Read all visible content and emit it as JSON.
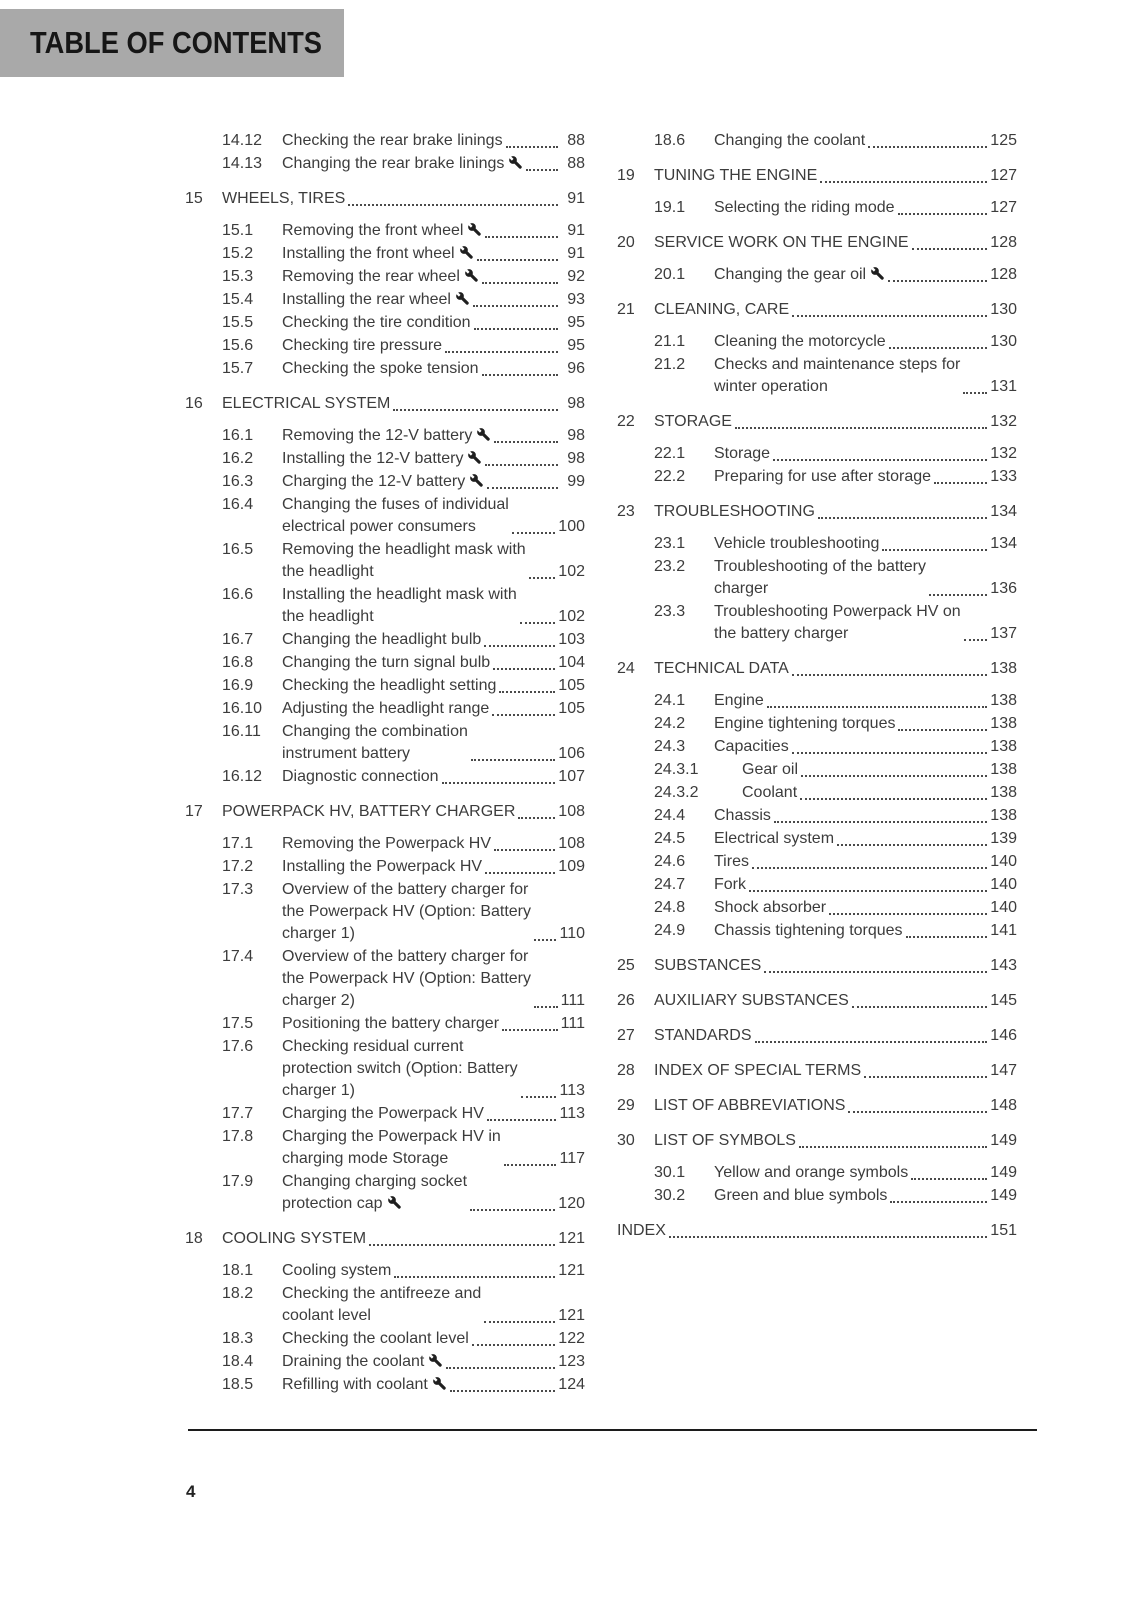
{
  "header": {
    "title": "TABLE OF CONTENTS"
  },
  "footer": {
    "page_number": "4"
  },
  "colors": {
    "header_bg": "#a9a9a9",
    "text": "#3c3c3c",
    "rule": "#1c1c1c"
  },
  "icons": {
    "wrench": "wrench-icon"
  },
  "toc": {
    "left": [
      {
        "level": "sub",
        "num": "14.12",
        "title": "Checking the rear brake linings",
        "page": "88",
        "wrench": false
      },
      {
        "level": "sub",
        "num": "14.13",
        "title": "Changing the rear brake linings",
        "page": "88",
        "wrench": true
      },
      {
        "level": "chapter",
        "num": "15",
        "title": "WHEELS, TIRES",
        "page": "91",
        "wrench": false
      },
      {
        "level": "sub",
        "num": "15.1",
        "title": "Removing the front wheel",
        "page": "91",
        "wrench": true
      },
      {
        "level": "sub",
        "num": "15.2",
        "title": "Installing the front wheel",
        "page": "91",
        "wrench": true
      },
      {
        "level": "sub",
        "num": "15.3",
        "title": "Removing the rear wheel",
        "page": "92",
        "wrench": true
      },
      {
        "level": "sub",
        "num": "15.4",
        "title": "Installing the rear wheel",
        "page": "93",
        "wrench": true
      },
      {
        "level": "sub",
        "num": "15.5",
        "title": "Checking the tire condition",
        "page": "95",
        "wrench": false
      },
      {
        "level": "sub",
        "num": "15.6",
        "title": "Checking tire pressure",
        "page": "95",
        "wrench": false
      },
      {
        "level": "sub",
        "num": "15.7",
        "title": "Checking the spoke tension",
        "page": "96",
        "wrench": false
      },
      {
        "level": "chapter",
        "num": "16",
        "title": "ELECTRICAL SYSTEM",
        "page": "98",
        "wrench": false
      },
      {
        "level": "sub",
        "num": "16.1",
        "title": "Removing the 12-V battery",
        "page": "98",
        "wrench": true
      },
      {
        "level": "sub",
        "num": "16.2",
        "title": "Installing the 12-V battery",
        "page": "98",
        "wrench": true
      },
      {
        "level": "sub",
        "num": "16.3",
        "title": "Charging the 12-V battery",
        "page": "99",
        "wrench": true
      },
      {
        "level": "sub",
        "num": "16.4",
        "title": "Changing the fuses of individual\nelectrical power consumers",
        "page": "100",
        "wrench": false
      },
      {
        "level": "sub",
        "num": "16.5",
        "title": "Removing the headlight mask with\nthe headlight",
        "page": "102",
        "wrench": false
      },
      {
        "level": "sub",
        "num": "16.6",
        "title": "Installing the headlight mask with\nthe headlight",
        "page": "102",
        "wrench": false
      },
      {
        "level": "sub",
        "num": "16.7",
        "title": "Changing the headlight bulb",
        "page": "103",
        "wrench": false
      },
      {
        "level": "sub",
        "num": "16.8",
        "title": "Changing the turn signal bulb",
        "page": "104",
        "wrench": false
      },
      {
        "level": "sub",
        "num": "16.9",
        "title": "Checking the headlight setting",
        "page": "105",
        "wrench": false
      },
      {
        "level": "sub",
        "num": "16.10",
        "title": "Adjusting the headlight range",
        "page": "105",
        "wrench": false
      },
      {
        "level": "sub",
        "num": "16.11",
        "title": "Changing the combination\ninstrument battery",
        "page": "106",
        "wrench": false
      },
      {
        "level": "sub",
        "num": "16.12",
        "title": "Diagnostic connection",
        "page": "107",
        "wrench": false
      },
      {
        "level": "chapter",
        "num": "17",
        "title": "POWERPACK HV, BATTERY CHARGER",
        "page": "108",
        "wrench": false
      },
      {
        "level": "sub",
        "num": "17.1",
        "title": "Removing the Powerpack HV",
        "page": "108",
        "wrench": false
      },
      {
        "level": "sub",
        "num": "17.2",
        "title": "Installing the Powerpack HV",
        "page": "109",
        "wrench": false
      },
      {
        "level": "sub",
        "num": "17.3",
        "title": "Overview of the battery charger for\nthe Powerpack HV (Option: Battery\ncharger 1)",
        "page": "110",
        "wrench": false
      },
      {
        "level": "sub",
        "num": "17.4",
        "title": "Overview of the battery charger for\nthe Powerpack HV (Option: Battery\ncharger 2)",
        "page": "111",
        "wrench": false
      },
      {
        "level": "sub",
        "num": "17.5",
        "title": "Positioning the battery charger",
        "page": "111",
        "wrench": false
      },
      {
        "level": "sub",
        "num": "17.6",
        "title": "Checking residual current\nprotection switch (Option: Battery\ncharger 1)",
        "page": "113",
        "wrench": false
      },
      {
        "level": "sub",
        "num": "17.7",
        "title": "Charging the Powerpack HV",
        "page": "113",
        "wrench": false
      },
      {
        "level": "sub",
        "num": "17.8",
        "title": "Charging the Powerpack HV in\ncharging mode Storage",
        "page": "117",
        "wrench": false
      },
      {
        "level": "sub",
        "num": "17.9",
        "title": "Changing charging socket\nprotection cap",
        "page": "120",
        "wrench": true
      },
      {
        "level": "chapter",
        "num": "18",
        "title": "COOLING SYSTEM",
        "page": "121",
        "wrench": false
      },
      {
        "level": "sub",
        "num": "18.1",
        "title": "Cooling system",
        "page": "121",
        "wrench": false
      },
      {
        "level": "sub",
        "num": "18.2",
        "title": "Checking the antifreeze and\ncoolant level",
        "page": "121",
        "wrench": false
      },
      {
        "level": "sub",
        "num": "18.3",
        "title": "Checking the coolant level",
        "page": "122",
        "wrench": false
      },
      {
        "level": "sub",
        "num": "18.4",
        "title": "Draining the coolant",
        "page": "123",
        "wrench": true
      },
      {
        "level": "sub",
        "num": "18.5",
        "title": "Refilling with coolant",
        "page": "124",
        "wrench": true
      }
    ],
    "right": [
      {
        "level": "sub",
        "num": "18.6",
        "title": "Changing the coolant",
        "page": "125",
        "wrench": false
      },
      {
        "level": "chapter",
        "num": "19",
        "title": "TUNING THE ENGINE",
        "page": "127",
        "wrench": false
      },
      {
        "level": "sub",
        "num": "19.1",
        "title": "Selecting the riding mode",
        "page": "127",
        "wrench": false
      },
      {
        "level": "chapter",
        "num": "20",
        "title": "SERVICE WORK ON THE ENGINE",
        "page": "128",
        "wrench": false
      },
      {
        "level": "sub",
        "num": "20.1",
        "title": "Changing the gear oil",
        "page": "128",
        "wrench": true
      },
      {
        "level": "chapter",
        "num": "21",
        "title": "CLEANING, CARE",
        "page": "130",
        "wrench": false
      },
      {
        "level": "sub",
        "num": "21.1",
        "title": "Cleaning the motorcycle",
        "page": "130",
        "wrench": false
      },
      {
        "level": "sub",
        "num": "21.2",
        "title": "Checks and maintenance steps for\nwinter operation",
        "page": "131",
        "wrench": false
      },
      {
        "level": "chapter",
        "num": "22",
        "title": "STORAGE",
        "page": "132",
        "wrench": false
      },
      {
        "level": "sub",
        "num": "22.1",
        "title": "Storage",
        "page": "132",
        "wrench": false
      },
      {
        "level": "sub",
        "num": "22.2",
        "title": "Preparing for use after storage",
        "page": "133",
        "wrench": false
      },
      {
        "level": "chapter",
        "num": "23",
        "title": "TROUBLESHOOTING",
        "page": "134",
        "wrench": false
      },
      {
        "level": "sub",
        "num": "23.1",
        "title": "Vehicle troubleshooting",
        "page": "134",
        "wrench": false
      },
      {
        "level": "sub",
        "num": "23.2",
        "title": "Troubleshooting of the battery\ncharger",
        "page": "136",
        "wrench": false
      },
      {
        "level": "sub",
        "num": "23.3",
        "title": "Troubleshooting Powerpack HV on\nthe battery charger",
        "page": "137",
        "wrench": false
      },
      {
        "level": "chapter",
        "num": "24",
        "title": "TECHNICAL DATA",
        "page": "138",
        "wrench": false
      },
      {
        "level": "sub",
        "num": "24.1",
        "title": "Engine",
        "page": "138",
        "wrench": false
      },
      {
        "level": "sub",
        "num": "24.2",
        "title": "Engine tightening torques",
        "page": "138",
        "wrench": false
      },
      {
        "level": "sub",
        "num": "24.3",
        "title": "Capacities",
        "page": "138",
        "wrench": false
      },
      {
        "level": "subsub",
        "num": "24.3.1",
        "title": "Gear oil",
        "page": "138",
        "wrench": false
      },
      {
        "level": "subsub",
        "num": "24.3.2",
        "title": "Coolant",
        "page": "138",
        "wrench": false
      },
      {
        "level": "sub",
        "num": "24.4",
        "title": "Chassis",
        "page": "138",
        "wrench": false
      },
      {
        "level": "sub",
        "num": "24.5",
        "title": "Electrical system",
        "page": "139",
        "wrench": false
      },
      {
        "level": "sub",
        "num": "24.6",
        "title": "Tires",
        "page": "140",
        "wrench": false
      },
      {
        "level": "sub",
        "num": "24.7",
        "title": "Fork",
        "page": "140",
        "wrench": false
      },
      {
        "level": "sub",
        "num": "24.8",
        "title": "Shock absorber",
        "page": "140",
        "wrench": false
      },
      {
        "level": "sub",
        "num": "24.9",
        "title": "Chassis tightening torques",
        "page": "141",
        "wrench": false
      },
      {
        "level": "chapter",
        "num": "25",
        "title": "SUBSTANCES",
        "page": "143",
        "wrench": false
      },
      {
        "level": "chapter",
        "num": "26",
        "title": "AUXILIARY SUBSTANCES",
        "page": "145",
        "wrench": false
      },
      {
        "level": "chapter",
        "num": "27",
        "title": "STANDARDS",
        "page": "146",
        "wrench": false
      },
      {
        "level": "chapter",
        "num": "28",
        "title": "INDEX OF SPECIAL TERMS",
        "page": "147",
        "wrench": false
      },
      {
        "level": "chapter",
        "num": "29",
        "title": "LIST OF ABBREVIATIONS",
        "page": "148",
        "wrench": false
      },
      {
        "level": "chapter",
        "num": "30",
        "title": "LIST OF SYMBOLS",
        "page": "149",
        "wrench": false
      },
      {
        "level": "sub",
        "num": "30.1",
        "title": "Yellow and orange symbols",
        "page": "149",
        "wrench": false
      },
      {
        "level": "sub",
        "num": "30.2",
        "title": "Green and blue symbols",
        "page": "149",
        "wrench": false
      },
      {
        "level": "index",
        "num": "",
        "title": "INDEX",
        "page": "151",
        "wrench": false
      }
    ]
  }
}
